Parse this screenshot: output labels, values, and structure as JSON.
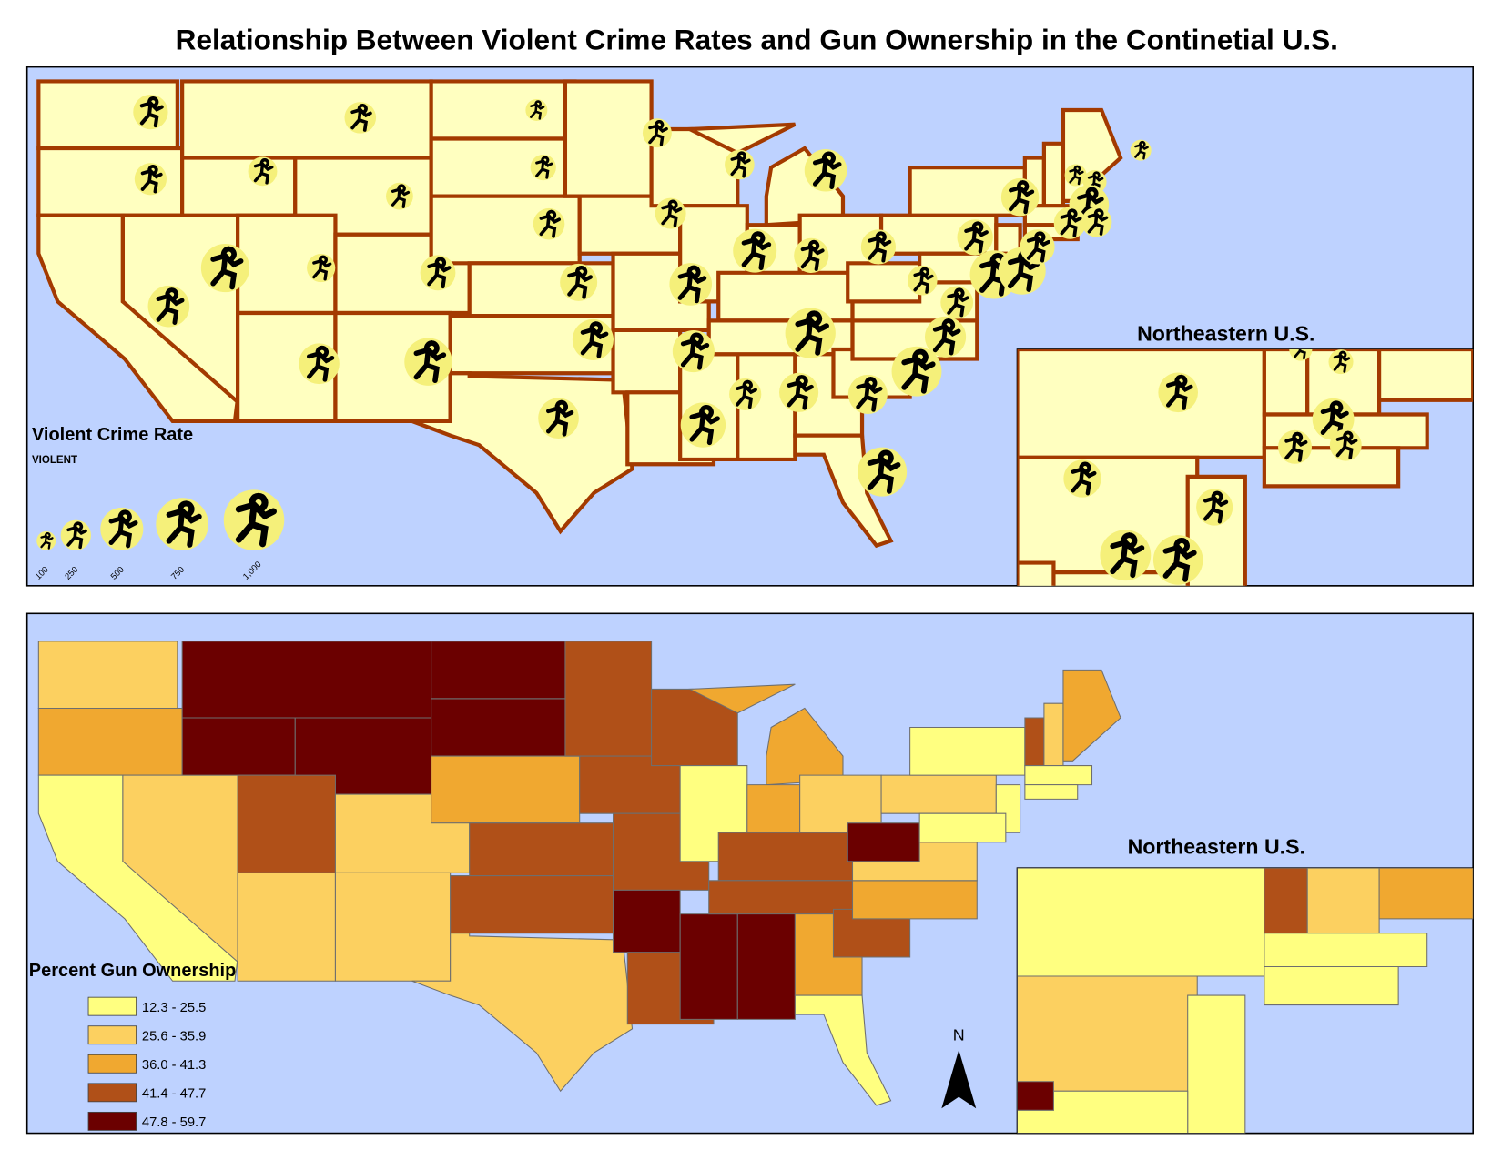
{
  "title": "Relationship Between Violent Crime Rates and Gun Ownership in the Continetial U.S.",
  "maps": [
    {
      "type": "proportional-symbol",
      "inset_title": "Northeastern U.S.",
      "legend_title": "Violent Crime Rate",
      "legend_subtitle": "VIOLENT",
      "legend_sizes": [
        100,
        250,
        500,
        750,
        {
          "value": 1000,
          "label": "1,000"
        }
      ],
      "symbol_color": "#f5f07a",
      "state_fill": "#ffffc0",
      "border_color": "#a33a00",
      "water_color": "#bed2ff",
      "values": [
        330,
        280,
        470,
        230,
        640,
        270,
        200,
        220,
        340,
        450,
        620,
        130,
        180,
        270,
        380,
        460,
        450,
        230,
        260,
        490,
        480,
        550,
        240,
        520,
        490,
        330,
        330,
        240,
        690,
        280,
        420,
        420,
        680,
        460,
        660,
        290,
        350,
        390,
        640,
        610,
        330,
        130,
        150,
        120,
        430,
        280,
        250
      ]
    },
    {
      "type": "choropleth",
      "inset_title": "Northeastern U.S.",
      "legend_title": "Percent Gun Ownership",
      "classes": [
        {
          "label": "12.3 - 25.5",
          "color": "#ffff80"
        },
        {
          "label": "25.6 - 35.9",
          "color": "#fcd060"
        },
        {
          "label": "36.0 - 41.3",
          "color": "#f0a830"
        },
        {
          "label": "41.4 - 47.7",
          "color": "#b05018"
        },
        {
          "label": "47.8 - 59.7",
          "color": "#6b0000"
        }
      ],
      "border_color": "#6e6e6e",
      "water_color": "#bed2ff",
      "north_label": "N"
    }
  ]
}
